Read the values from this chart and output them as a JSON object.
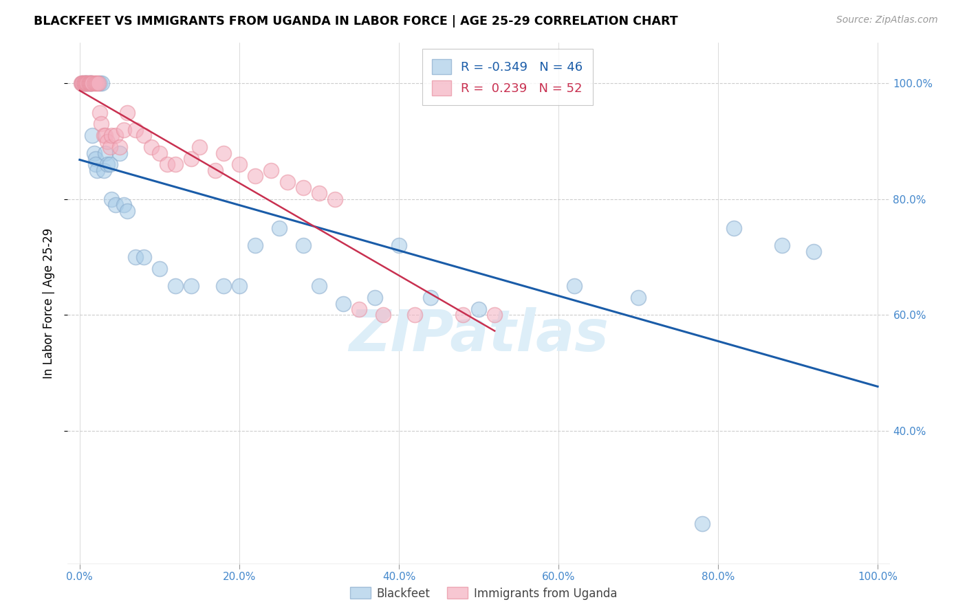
{
  "title": "BLACKFEET VS IMMIGRANTS FROM UGANDA IN LABOR FORCE | AGE 25-29 CORRELATION CHART",
  "source": "Source: ZipAtlas.com",
  "ylabel_label": "In Labor Force | Age 25-29",
  "legend_blue_r": "-0.349",
  "legend_blue_n": "46",
  "legend_pink_r": " 0.239",
  "legend_pink_n": "52",
  "legend_blue_label": "Blackfeet",
  "legend_pink_label": "Immigrants from Uganda",
  "blue_color": "#a8cce8",
  "pink_color": "#f4b0c0",
  "blue_edge_color": "#88aacc",
  "pink_edge_color": "#e890a0",
  "blue_line_color": "#1a5ca8",
  "pink_line_color": "#c83050",
  "watermark_color": "#ddeef8",
  "tick_color": "#4488cc",
  "grid_color": "#cccccc",
  "blue_x": [
    0.3,
    0.5,
    0.7,
    0.8,
    1.0,
    1.2,
    1.4,
    1.5,
    1.6,
    1.8,
    2.0,
    2.0,
    2.2,
    2.5,
    2.8,
    3.0,
    3.2,
    3.5,
    3.8,
    4.0,
    4.5,
    5.0,
    5.5,
    6.0,
    7.0,
    8.0,
    10.0,
    12.0,
    14.0,
    18.0,
    20.0,
    22.0,
    25.0,
    28.0,
    30.0,
    33.0,
    37.0,
    40.0,
    44.0,
    50.0,
    62.0,
    70.0,
    78.0,
    82.0,
    88.0,
    92.0
  ],
  "blue_y": [
    100.0,
    100.0,
    100.0,
    100.0,
    100.0,
    100.0,
    100.0,
    100.0,
    91.0,
    88.0,
    87.0,
    86.0,
    85.0,
    100.0,
    100.0,
    85.0,
    88.0,
    86.0,
    86.0,
    80.0,
    79.0,
    88.0,
    79.0,
    78.0,
    70.0,
    70.0,
    68.0,
    65.0,
    65.0,
    65.0,
    65.0,
    72.0,
    75.0,
    72.0,
    65.0,
    62.0,
    63.0,
    72.0,
    63.0,
    61.0,
    65.0,
    63.0,
    24.0,
    75.0,
    72.0,
    71.0
  ],
  "pink_x": [
    0.2,
    0.3,
    0.4,
    0.5,
    0.6,
    0.7,
    0.8,
    0.9,
    1.0,
    1.1,
    1.2,
    1.3,
    1.4,
    1.5,
    1.6,
    1.8,
    2.0,
    2.2,
    2.3,
    2.5,
    2.7,
    3.0,
    3.2,
    3.5,
    3.8,
    4.0,
    4.5,
    5.0,
    5.5,
    6.0,
    7.0,
    8.0,
    9.0,
    10.0,
    11.0,
    12.0,
    14.0,
    15.0,
    17.0,
    18.0,
    20.0,
    22.0,
    24.0,
    26.0,
    28.0,
    30.0,
    32.0,
    35.0,
    38.0,
    42.0,
    48.0,
    52.0
  ],
  "pink_y": [
    100.0,
    100.0,
    100.0,
    100.0,
    100.0,
    100.0,
    100.0,
    100.0,
    100.0,
    100.0,
    100.0,
    100.0,
    100.0,
    100.0,
    100.0,
    100.0,
    100.0,
    100.0,
    100.0,
    95.0,
    93.0,
    91.0,
    91.0,
    90.0,
    89.0,
    91.0,
    91.0,
    89.0,
    92.0,
    95.0,
    92.0,
    91.0,
    89.0,
    88.0,
    86.0,
    86.0,
    87.0,
    89.0,
    85.0,
    88.0,
    86.0,
    84.0,
    85.0,
    83.0,
    82.0,
    81.0,
    80.0,
    61.0,
    60.0,
    60.0,
    60.0,
    60.0
  ]
}
